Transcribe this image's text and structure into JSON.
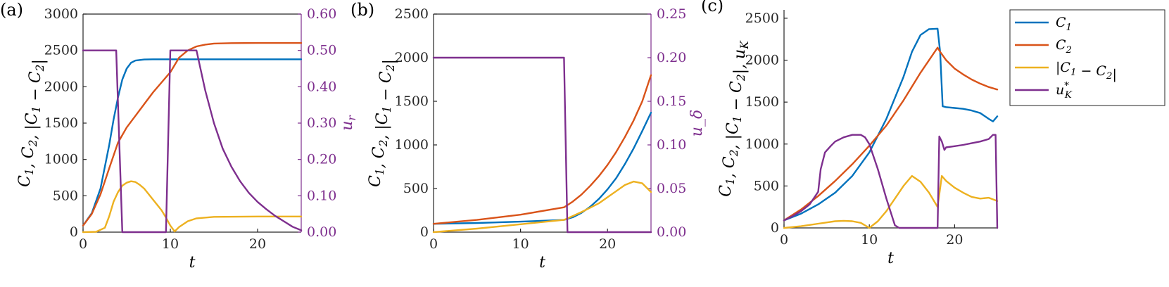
{
  "colors": {
    "C1": "#0072bd",
    "C2": "#d95319",
    "diff": "#edb120",
    "u": "#7e2f8e"
  },
  "legend": [
    "C_1",
    "C_2",
    "|C_1 − C_2|",
    "u*_K"
  ],
  "chart_data": [
    {
      "type": "line",
      "panel_label": "(a)",
      "xlabel": "t",
      "ylabel": "C_1, C_2, |C_1 − C_2|",
      "ylabel_right": "u_r",
      "xlim": [
        0,
        25
      ],
      "ylim": [
        0,
        3000
      ],
      "ylim_right": [
        0,
        0.6
      ],
      "xticks": [
        0,
        10,
        20
      ],
      "yticks": [
        0,
        500,
        1000,
        1500,
        2000,
        2500,
        3000
      ],
      "yticks_right": [
        "0.00",
        "0.10",
        "0.20",
        "0.30",
        "0.40",
        "0.50",
        "0.60"
      ],
      "series": [
        {
          "key": "C1",
          "axis": "left",
          "x": [
            0,
            1,
            2,
            3,
            3.5,
            4,
            4.5,
            5,
            5.5,
            6,
            7,
            8,
            10,
            15,
            20,
            25
          ],
          "y": [
            90,
            260,
            600,
            1200,
            1550,
            1850,
            2100,
            2250,
            2330,
            2360,
            2375,
            2378,
            2378,
            2378,
            2378,
            2378
          ]
        },
        {
          "key": "C2",
          "axis": "left",
          "x": [
            0,
            1,
            2,
            3,
            4,
            5,
            6,
            7,
            8,
            9,
            10,
            11,
            12,
            13,
            14,
            15,
            17,
            20,
            25
          ],
          "y": [
            90,
            250,
            520,
            880,
            1230,
            1440,
            1600,
            1760,
            1920,
            2060,
            2200,
            2400,
            2500,
            2555,
            2580,
            2595,
            2600,
            2602,
            2602
          ]
        },
        {
          "key": "diff",
          "axis": "left",
          "x": [
            0,
            1.5,
            2.5,
            3,
            3.5,
            4,
            4.5,
            5,
            5.5,
            6,
            6.5,
            7,
            8,
            9,
            9.5,
            10,
            10.5,
            11,
            12,
            13,
            15,
            20,
            25
          ],
          "y": [
            0,
            5,
            60,
            220,
            420,
            550,
            640,
            680,
            700,
            690,
            650,
            600,
            450,
            300,
            200,
            90,
            10,
            70,
            150,
            190,
            210,
            215,
            215
          ]
        },
        {
          "key": "u",
          "axis": "right",
          "x": [
            0,
            3.8,
            4.5,
            9.5,
            10,
            13,
            14,
            15,
            16,
            17,
            18,
            19,
            20,
            21,
            22,
            23,
            24,
            25
          ],
          "y": [
            0.5,
            0.5,
            0,
            0,
            0.5,
            0.5,
            0.39,
            0.3,
            0.23,
            0.18,
            0.14,
            0.108,
            0.083,
            0.063,
            0.045,
            0.03,
            0.015,
            0.005
          ]
        }
      ]
    },
    {
      "type": "line",
      "panel_label": "(b)",
      "xlabel": "t",
      "ylabel": "C_1, C_2, |C_1 − C_2|",
      "ylabel_right": "u_δ",
      "xlim": [
        0,
        25
      ],
      "ylim": [
        0,
        2500
      ],
      "ylim_right": [
        0,
        0.25
      ],
      "xticks": [
        0,
        10,
        20
      ],
      "yticks": [
        0,
        500,
        1000,
        1500,
        2000,
        2500
      ],
      "yticks_right": [
        "0.00",
        "0.05",
        "0.10",
        "0.15",
        "0.20",
        "0.25"
      ],
      "series": [
        {
          "key": "C1",
          "axis": "left",
          "x": [
            0,
            5,
            10,
            15,
            16,
            17,
            18,
            19,
            20,
            21,
            22,
            23,
            24,
            25
          ],
          "y": [
            95,
            105,
            120,
            140,
            170,
            220,
            290,
            380,
            490,
            620,
            780,
            960,
            1160,
            1370
          ]
        },
        {
          "key": "C2",
          "axis": "left",
          "x": [
            0,
            5,
            10,
            15,
            16,
            17,
            18,
            19,
            20,
            21,
            22,
            23,
            24,
            25
          ],
          "y": [
            95,
            140,
            200,
            285,
            350,
            430,
            530,
            640,
            770,
            920,
            1090,
            1280,
            1500,
            1800
          ]
        },
        {
          "key": "diff",
          "axis": "left",
          "x": [
            0,
            5,
            10,
            15,
            16,
            17,
            18,
            19,
            20,
            21,
            22,
            23,
            24,
            25
          ],
          "y": [
            0,
            40,
            90,
            140,
            185,
            230,
            280,
            330,
            400,
            470,
            540,
            580,
            560,
            460
          ]
        },
        {
          "key": "u",
          "axis": "right",
          "x": [
            0,
            15,
            15.4,
            25
          ],
          "y": [
            0.2,
            0.2,
            0,
            0
          ]
        }
      ]
    },
    {
      "type": "line",
      "panel_label": "(c)",
      "xlabel": "t",
      "ylabel": "C_1, C_2, |C_1 − C_2|, u_K",
      "xlim": [
        0,
        25
      ],
      "ylim": [
        0,
        2600
      ],
      "xticks": [
        0,
        10,
        20
      ],
      "yticks": [
        0,
        500,
        1000,
        1500,
        2000,
        2500
      ],
      "series": [
        {
          "key": "C1",
          "axis": "left",
          "x": [
            0,
            2,
            4,
            6,
            8,
            10,
            12,
            14,
            15,
            16,
            17,
            18,
            18.3,
            18.6,
            19,
            20,
            21,
            22,
            23,
            24,
            24.5,
            25
          ],
          "y": [
            90,
            170,
            280,
            420,
            620,
            900,
            1300,
            1800,
            2100,
            2300,
            2370,
            2375,
            2100,
            1450,
            1440,
            1430,
            1420,
            1400,
            1370,
            1300,
            1270,
            1330
          ]
        },
        {
          "key": "C2",
          "axis": "left",
          "x": [
            0,
            2,
            4,
            6,
            8,
            10,
            12,
            14,
            16,
            18,
            18.3,
            19,
            20,
            21,
            22,
            23,
            24,
            25
          ],
          "y": [
            90,
            220,
            380,
            560,
            760,
            980,
            1220,
            1520,
            1850,
            2150,
            2100,
            2000,
            1900,
            1830,
            1770,
            1720,
            1680,
            1650
          ]
        },
        {
          "key": "diff",
          "axis": "left",
          "x": [
            0,
            2,
            4,
            6,
            7,
            8,
            9,
            10,
            11,
            12,
            13,
            14,
            15,
            16,
            17,
            18,
            18.5,
            19,
            20,
            21,
            22,
            23,
            24,
            25
          ],
          "y": [
            0,
            20,
            50,
            80,
            85,
            80,
            60,
            0,
            80,
            200,
            350,
            500,
            620,
            550,
            420,
            250,
            620,
            560,
            480,
            420,
            370,
            350,
            360,
            320
          ]
        },
        {
          "key": "u",
          "axis": "left",
          "x": [
            0,
            1,
            2,
            3,
            4,
            4.3,
            4.8,
            5.5,
            6,
            7,
            8,
            9,
            9.5,
            10,
            11,
            12,
            13,
            13.5,
            18,
            18.2,
            18.5,
            18.8,
            19,
            20,
            21,
            22,
            23,
            24,
            24.5,
            24.8,
            25
          ],
          "y": [
            90,
            140,
            200,
            280,
            430,
            700,
            900,
            980,
            1030,
            1080,
            1110,
            1110,
            1080,
            1000,
            700,
            350,
            30,
            0,
            0,
            1090,
            1030,
            930,
            960,
            975,
            990,
            1010,
            1030,
            1060,
            1110,
            1110,
            0
          ]
        }
      ]
    }
  ]
}
